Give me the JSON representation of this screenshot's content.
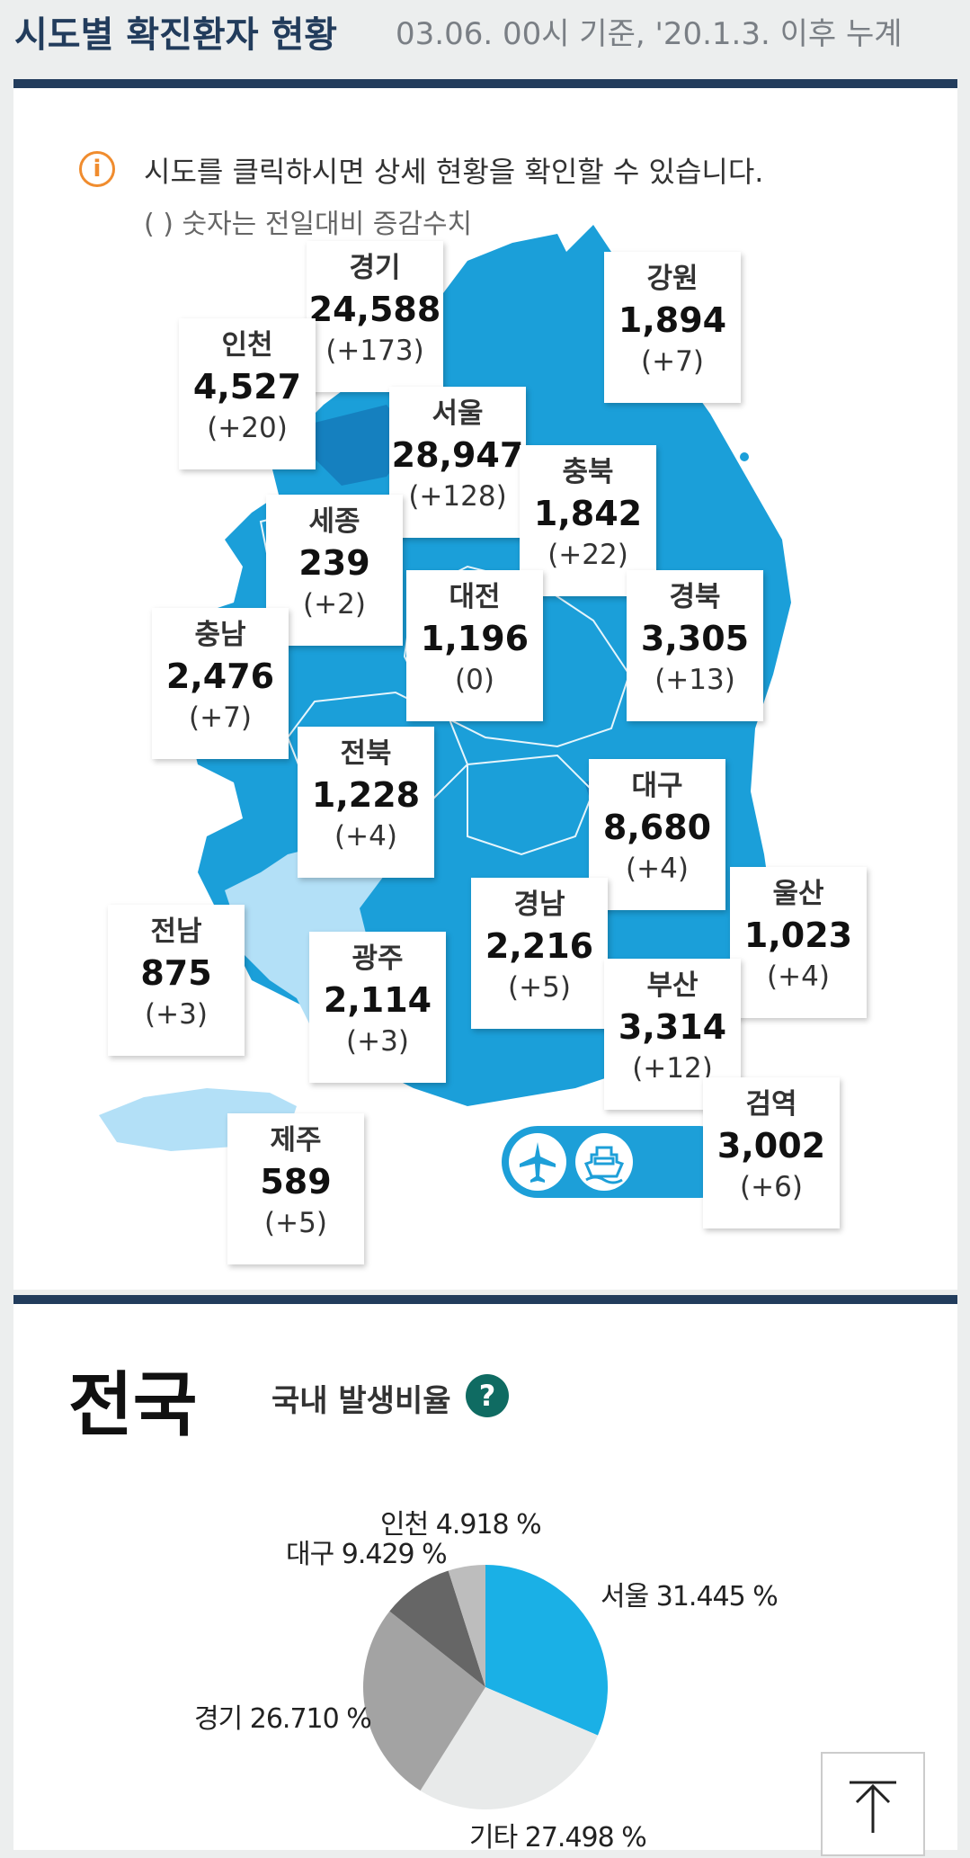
{
  "header": {
    "title": "시도별 확진환자 현황",
    "subtitle": "03.06. 00시 기준, '20.1.3. 이후 누계"
  },
  "notice": {
    "line1": "시도를 클릭하시면 상세 현황을 확인할 수 있습니다.",
    "line2": "( ) 숫자는 전일대비 증감수치"
  },
  "regions": [
    {
      "name": "경기",
      "count": "24,588",
      "diff": "(+173)"
    },
    {
      "name": "강원",
      "count": "1,894",
      "diff": "(+7)"
    },
    {
      "name": "인천",
      "count": "4,527",
      "diff": "(+20)"
    },
    {
      "name": "서울",
      "count": "28,947",
      "diff": "(+128)"
    },
    {
      "name": "충북",
      "count": "1,842",
      "diff": "(+22)"
    },
    {
      "name": "세종",
      "count": "239",
      "diff": "(+2)"
    },
    {
      "name": "대전",
      "count": "1,196",
      "diff": "(0)"
    },
    {
      "name": "경북",
      "count": "3,305",
      "diff": "(+13)"
    },
    {
      "name": "충남",
      "count": "2,476",
      "diff": "(+7)"
    },
    {
      "name": "전북",
      "count": "1,228",
      "diff": "(+4)"
    },
    {
      "name": "대구",
      "count": "8,680",
      "diff": "(+4)"
    },
    {
      "name": "울산",
      "count": "1,023",
      "diff": "(+4)"
    },
    {
      "name": "경남",
      "count": "2,216",
      "diff": "(+5)"
    },
    {
      "name": "전남",
      "count": "875",
      "diff": "(+3)"
    },
    {
      "name": "광주",
      "count": "2,114",
      "diff": "(+3)"
    },
    {
      "name": "부산",
      "count": "3,314",
      "diff": "(+12)"
    },
    {
      "name": "검역",
      "count": "3,002",
      "diff": "(+6)"
    },
    {
      "name": "제주",
      "count": "589",
      "diff": "(+5)"
    }
  ],
  "quarantine_icons": [
    "airplane-icon",
    "ship-icon"
  ],
  "national": {
    "title": "전국",
    "ratio_label": "국내 발생비율",
    "help": "?"
  },
  "chart_data": {
    "type": "pie",
    "title": "국내 발생비율",
    "slices": [
      {
        "label": "서울 31.445 %",
        "value": 31.445,
        "color": "#1ab0e6"
      },
      {
        "label": "기타 27.498 %",
        "value": 27.498,
        "color": "#e8eaea"
      },
      {
        "label": "경기 26.710 %",
        "value": 26.71,
        "color": "#a3a3a3"
      },
      {
        "label": "대구 9.429 %",
        "value": 9.429,
        "color": "#666666"
      },
      {
        "label": "인천 4.918 %",
        "value": 4.918,
        "color": "#bdbdbd"
      }
    ]
  },
  "colors": {
    "header": "#223c5c",
    "map_main": "#1b9fd9",
    "map_light": "#b3e0f7",
    "notice_icon": "#f08c2e",
    "help_icon": "#0f6b62"
  }
}
